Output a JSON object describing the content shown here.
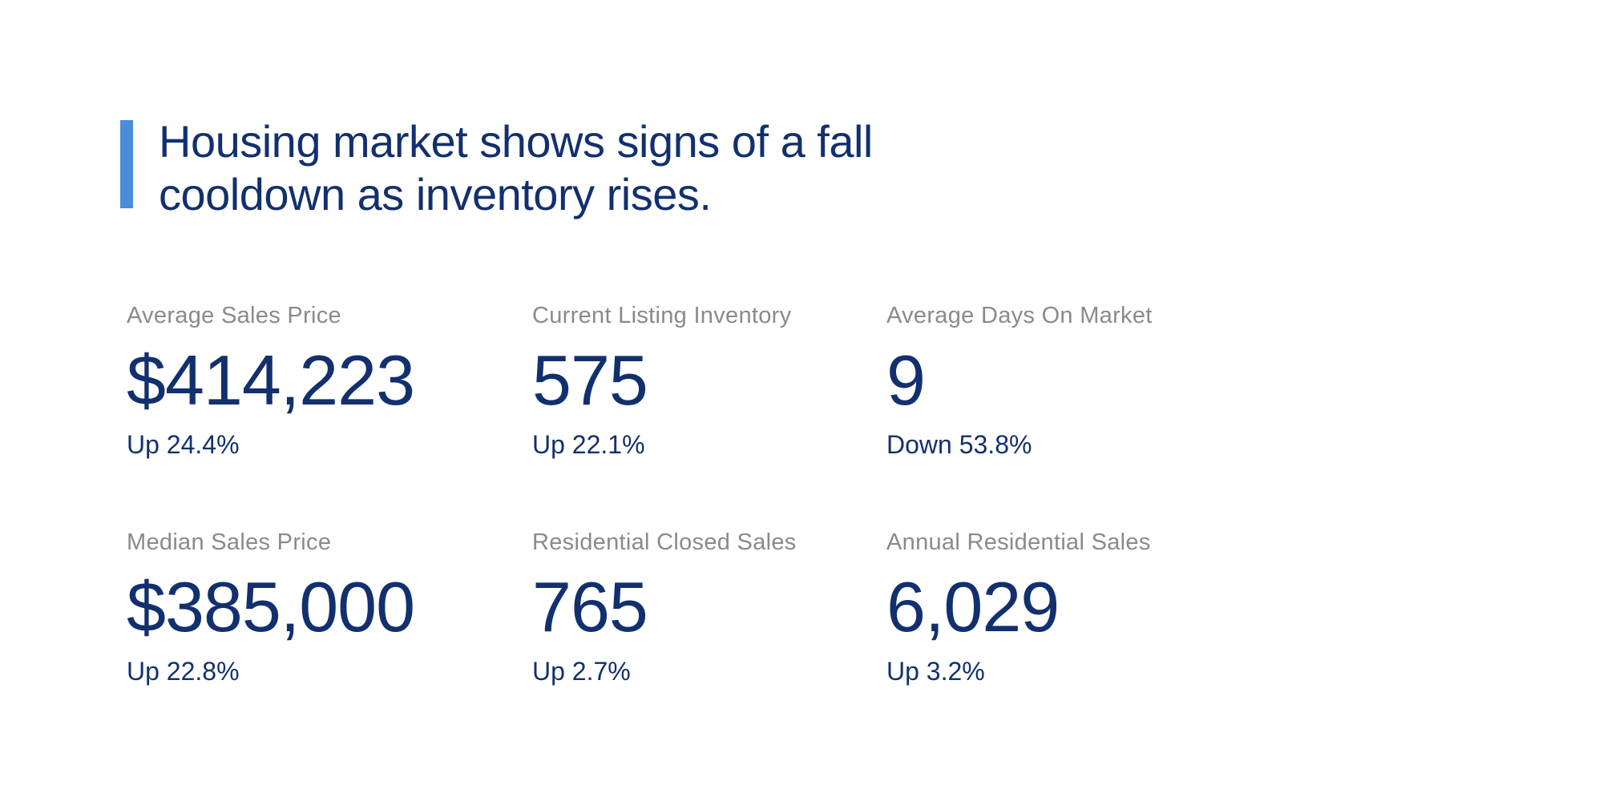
{
  "headline": {
    "line1": "Housing market shows signs of a fall",
    "line2": "cooldown as inventory rises.",
    "full_text": "Housing market shows signs of a fall cooldown as inventory rises."
  },
  "colors": {
    "background": "#ffffff",
    "accent_bar_blue": "#4a8cd8",
    "navy_text": "#12306e",
    "label_gray": "#8a8a8a"
  },
  "stats": [
    {
      "label": "Average Sales Price",
      "value": "$414,223",
      "change": "Up 24.4%",
      "direction": "up"
    },
    {
      "label": "Current Listing Inventory",
      "value": "575",
      "change": "Up 22.1%",
      "direction": "up"
    },
    {
      "label": "Average Days On Market",
      "value": "9",
      "change": "Down 53.8%",
      "direction": "down"
    },
    {
      "label": "Median Sales Price",
      "value": "$385,000",
      "change": "Up 22.8%",
      "direction": "up"
    },
    {
      "label": "Residential Closed Sales",
      "value": "765",
      "change": "Up 2.7%",
      "direction": "up"
    },
    {
      "label": "Annual Residential Sales",
      "value": "6,029",
      "change": "Up 3.2%",
      "direction": "up"
    }
  ],
  "chart_data": {
    "type": "table",
    "title": "Housing market shows signs of a fall cooldown as inventory rises.",
    "columns": [
      "metric",
      "value",
      "change_pct",
      "direction"
    ],
    "rows": [
      [
        "Average Sales Price",
        414223,
        24.4,
        "up"
      ],
      [
        "Current Listing Inventory",
        575,
        22.1,
        "up"
      ],
      [
        "Average Days On Market",
        9,
        53.8,
        "down"
      ],
      [
        "Median Sales Price",
        385000,
        22.8,
        "up"
      ],
      [
        "Residential Closed Sales",
        765,
        2.7,
        "up"
      ],
      [
        "Annual Residential Sales",
        6029,
        3.2,
        "up"
      ]
    ],
    "layout": "2 rows x 3 columns KPI grid, white background, no axes or gridlines"
  }
}
